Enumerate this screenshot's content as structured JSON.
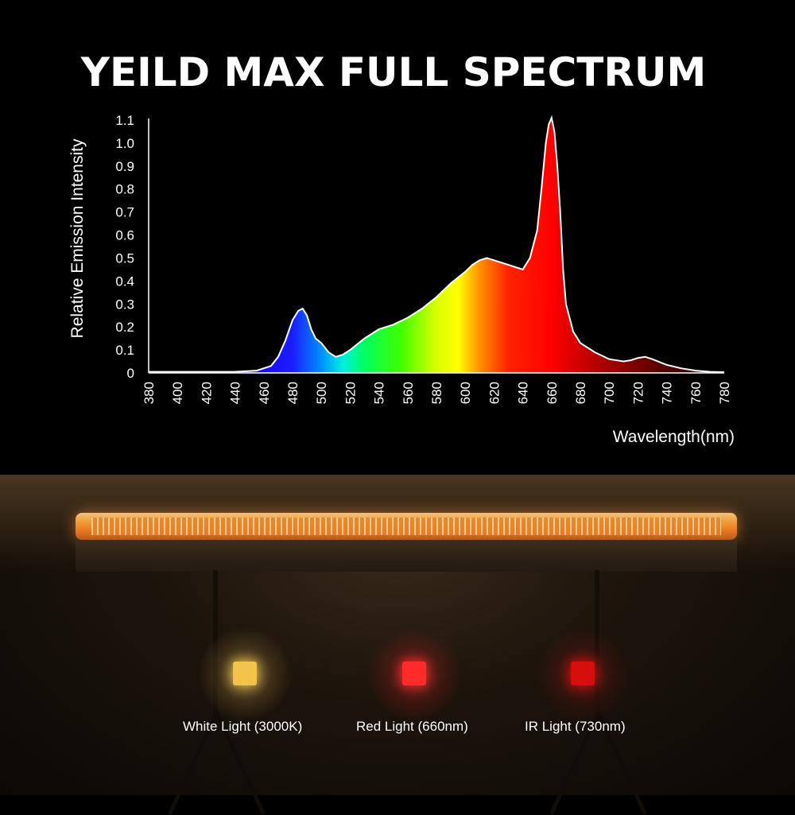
{
  "title": "YEILD MAX FULL SPECTRUM",
  "chart_data": {
    "type": "area",
    "title": "YEILD MAX FULL SPECTRUM",
    "xlabel": "Wavelength(nm)",
    "ylabel": "Relative Emission Intensity",
    "xlim": [
      380,
      780
    ],
    "ylim": [
      0,
      1.1
    ],
    "x_ticks": [
      "380",
      "400",
      "420",
      "440",
      "460",
      "480",
      "500",
      "520",
      "540",
      "560",
      "580",
      "600",
      "620",
      "640",
      "660",
      "680",
      "700",
      "720",
      "740",
      "760",
      "780"
    ],
    "y_ticks": [
      "0",
      "0.1",
      "0.2",
      "0.3",
      "0.4",
      "0.5",
      "0.6",
      "0.7",
      "0.8",
      "0.9",
      "1.0",
      "1.1"
    ],
    "series": [
      {
        "x": [
          380,
          400,
          420,
          440,
          455,
          465,
          470,
          475,
          480,
          484,
          487,
          490,
          493,
          496,
          500,
          505,
          510,
          515,
          520,
          530,
          540,
          550,
          560,
          570,
          580,
          590,
          600,
          605,
          610,
          615,
          620,
          625,
          630,
          635,
          640,
          645,
          650,
          653,
          656,
          658,
          660,
          662,
          664,
          666,
          668,
          670,
          675,
          680,
          690,
          700,
          710,
          715,
          720,
          725,
          730,
          740,
          750,
          760,
          770,
          780
        ],
        "y": [
          0.005,
          0.005,
          0.005,
          0.005,
          0.01,
          0.03,
          0.07,
          0.14,
          0.23,
          0.27,
          0.28,
          0.25,
          0.19,
          0.15,
          0.13,
          0.09,
          0.07,
          0.08,
          0.1,
          0.15,
          0.19,
          0.21,
          0.24,
          0.28,
          0.33,
          0.39,
          0.44,
          0.47,
          0.49,
          0.5,
          0.49,
          0.48,
          0.47,
          0.46,
          0.45,
          0.5,
          0.62,
          0.8,
          1.0,
          1.08,
          1.11,
          1.05,
          0.9,
          0.7,
          0.45,
          0.3,
          0.18,
          0.13,
          0.09,
          0.06,
          0.05,
          0.055,
          0.065,
          0.07,
          0.06,
          0.035,
          0.02,
          0.01,
          0.005,
          0.003
        ]
      }
    ],
    "grid": false,
    "legend": "none"
  },
  "lights": [
    {
      "label": "White Light (3000K)",
      "color": "#f2c34a"
    },
    {
      "label": "Red Light (660nm)",
      "color": "#ff2a2a"
    },
    {
      "label": "IR Light (730nm)",
      "color": "#d60e0e"
    }
  ]
}
